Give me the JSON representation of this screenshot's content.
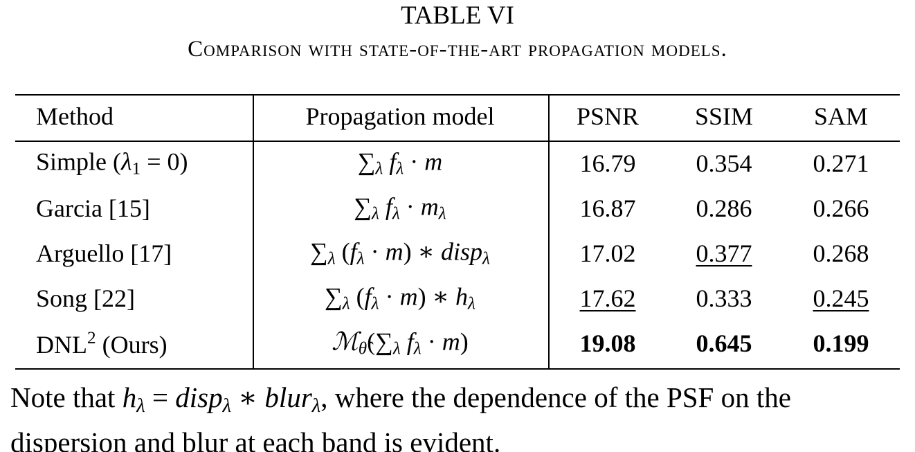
{
  "caption": {
    "label": "TABLE VI",
    "title": "Comparison with state-of-the-art propagation models."
  },
  "table": {
    "header": [
      "Method",
      "Propagation model",
      "PSNR",
      "SSIM",
      "SAM"
    ],
    "rows": [
      {
        "method": [
          {
            "text": "Simple ("
          },
          {
            "text": "λ",
            "italic": true
          },
          {
            "text": "1",
            "script": "sub"
          },
          {
            "text": " = 0)"
          }
        ],
        "model": [
          {
            "text": "∑"
          },
          {
            "text": "λ",
            "italic": true,
            "script": "sub"
          },
          {
            "text": " f",
            "italic": true
          },
          {
            "text": "λ",
            "italic": true,
            "script": "sub"
          },
          {
            "text": " · "
          },
          {
            "text": "m",
            "italic": true
          }
        ],
        "metrics": [
          "16.79",
          "0.354",
          "0.271"
        ],
        "underline": [],
        "bold": false
      },
      {
        "method": [
          {
            "text": "Garcia [15]"
          }
        ],
        "model": [
          {
            "text": "∑"
          },
          {
            "text": "λ",
            "italic": true,
            "script": "sub"
          },
          {
            "text": " f",
            "italic": true
          },
          {
            "text": "λ",
            "italic": true,
            "script": "sub"
          },
          {
            "text": " · "
          },
          {
            "text": "m",
            "italic": true
          },
          {
            "text": "λ",
            "italic": true,
            "script": "sub"
          }
        ],
        "metrics": [
          "16.87",
          "0.286",
          "0.266"
        ],
        "underline": [],
        "bold": false
      },
      {
        "method": [
          {
            "text": "Arguello [17]"
          }
        ],
        "model": [
          {
            "text": "∑"
          },
          {
            "text": "λ",
            "italic": true,
            "script": "sub"
          },
          {
            "text": " ("
          },
          {
            "text": "f",
            "italic": true
          },
          {
            "text": "λ",
            "italic": true,
            "script": "sub"
          },
          {
            "text": " · "
          },
          {
            "text": "m",
            "italic": true
          },
          {
            "text": ") ∗ "
          },
          {
            "text": "disp",
            "italic": true
          },
          {
            "text": "λ",
            "italic": true,
            "script": "sub"
          }
        ],
        "metrics": [
          "17.02",
          "0.377",
          "0.268"
        ],
        "underline": [
          1
        ],
        "bold": false
      },
      {
        "method": [
          {
            "text": "Song [22]"
          }
        ],
        "model": [
          {
            "text": "∑"
          },
          {
            "text": "λ",
            "italic": true,
            "script": "sub"
          },
          {
            "text": " ("
          },
          {
            "text": "f",
            "italic": true
          },
          {
            "text": "λ",
            "italic": true,
            "script": "sub"
          },
          {
            "text": " · "
          },
          {
            "text": "m",
            "italic": true
          },
          {
            "text": ") ∗ "
          },
          {
            "text": "h",
            "italic": true
          },
          {
            "text": "λ",
            "italic": true,
            "script": "sub"
          }
        ],
        "metrics": [
          "17.62",
          "0.333",
          "0.245"
        ],
        "underline": [
          0,
          2
        ],
        "bold": false
      },
      {
        "method": [
          {
            "text": "DNL"
          },
          {
            "text": "2",
            "script": "sup"
          },
          {
            "text": " (Ours)"
          }
        ],
        "model": [
          {
            "text": "ℳ",
            "italic": true
          },
          {
            "text": "θ̂",
            "italic": true,
            "script": "sub"
          },
          {
            "text": "(∑"
          },
          {
            "text": "λ",
            "italic": true,
            "script": "sub"
          },
          {
            "text": " f",
            "italic": true
          },
          {
            "text": "λ",
            "italic": true,
            "script": "sub"
          },
          {
            "text": " · "
          },
          {
            "text": "m",
            "italic": true
          },
          {
            "text": ")"
          }
        ],
        "metrics": [
          "19.08",
          "0.645",
          "0.199"
        ],
        "underline": [],
        "bold": true
      }
    ]
  },
  "note": [
    {
      "text": "Note that "
    },
    {
      "text": "h",
      "italic": true
    },
    {
      "text": "λ",
      "italic": true,
      "script": "sub"
    },
    {
      "text": " = "
    },
    {
      "text": "disp",
      "italic": true
    },
    {
      "text": "λ",
      "italic": true,
      "script": "sub"
    },
    {
      "text": " ∗ "
    },
    {
      "text": "blur",
      "italic": true
    },
    {
      "text": "λ",
      "italic": true,
      "script": "sub"
    },
    {
      "text": ", where the dependence of the PSF on the dispersion and blur at each band is evident."
    }
  ]
}
